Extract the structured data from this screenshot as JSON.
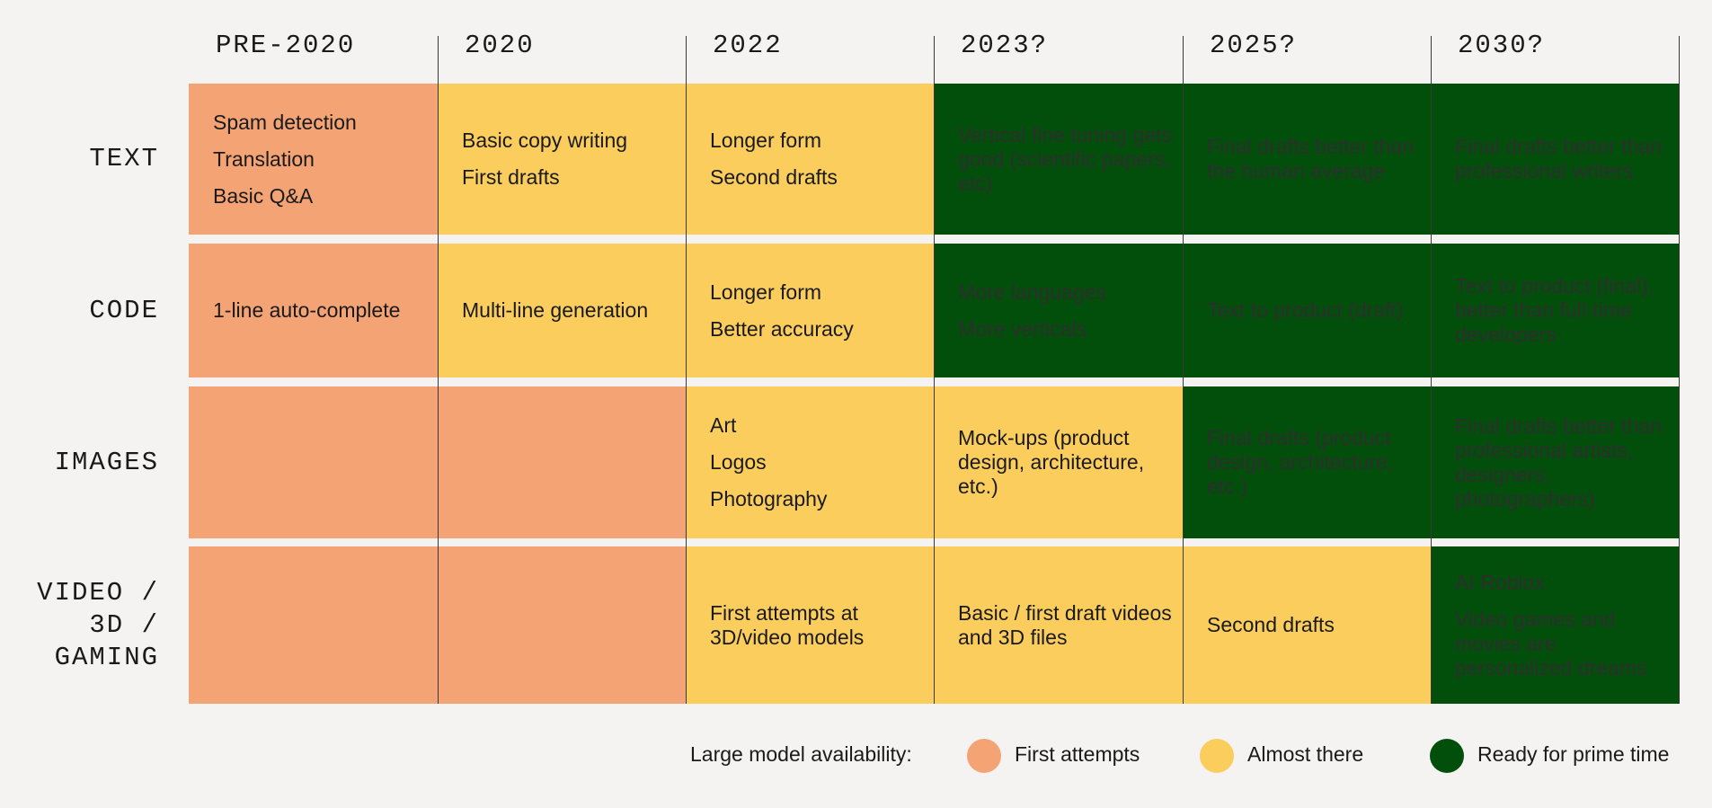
{
  "columns": [
    "PRE-2020",
    "2020",
    "2022",
    "2023?",
    "2025?",
    "2030?"
  ],
  "rows": [
    {
      "label": [
        "TEXT"
      ]
    },
    {
      "label": [
        "CODE"
      ]
    },
    {
      "label": [
        "IMAGES"
      ]
    },
    {
      "label": [
        "VIDEO /",
        "3D /",
        "GAMING"
      ]
    }
  ],
  "colors": {
    "first": "#f4a374",
    "almost": "#facd5c",
    "ready": "#024f0b",
    "background": "#f4f3f1"
  },
  "cells": [
    [
      {
        "level": "first",
        "items": [
          "Spam detection",
          "Translation",
          "Basic Q&A"
        ]
      },
      {
        "level": "almost",
        "items": [
          "Basic copy writing",
          "First drafts"
        ]
      },
      {
        "level": "almost",
        "items": [
          "Longer form",
          "Second drafts"
        ]
      },
      {
        "level": "ready",
        "items": [
          "Vertical fine tuning gets good (scientific papers, etc)"
        ]
      },
      {
        "level": "ready",
        "items": [
          "Final drafts better than the human average"
        ]
      },
      {
        "level": "ready",
        "items": [
          "Final drafts better than professional writers"
        ]
      }
    ],
    [
      {
        "level": "first",
        "items": [
          "1-line auto-complete"
        ]
      },
      {
        "level": "almost",
        "items": [
          "Multi-line generation"
        ]
      },
      {
        "level": "almost",
        "items": [
          "Longer form",
          "Better accuracy"
        ]
      },
      {
        "level": "ready",
        "items": [
          "More languages",
          "More verticals"
        ]
      },
      {
        "level": "ready",
        "items": [
          "Text to product (draft)"
        ]
      },
      {
        "level": "ready",
        "items": [
          "Text to product (final), better than full-time developers"
        ]
      }
    ],
    [
      {
        "level": "first",
        "items": []
      },
      {
        "level": "first",
        "items": []
      },
      {
        "level": "almost",
        "items": [
          "Art",
          "Logos",
          "Photography"
        ]
      },
      {
        "level": "almost",
        "items": [
          "Mock-ups (product design, architecture, etc.)"
        ]
      },
      {
        "level": "ready",
        "items": [
          "Final drafts (product design, architecture, etc.)"
        ]
      },
      {
        "level": "ready",
        "items": [
          "Final drafts better than professional artists, designers, photographers)"
        ]
      }
    ],
    [
      {
        "level": "first",
        "items": []
      },
      {
        "level": "first",
        "items": []
      },
      {
        "level": "almost",
        "items": [
          "First attempts at 3D/video models"
        ]
      },
      {
        "level": "almost",
        "items": [
          "Basic / first draft videos and 3D files"
        ]
      },
      {
        "level": "almost",
        "items": [
          "Second drafts"
        ]
      },
      {
        "level": "ready",
        "items": [
          "AI Roblox",
          "Video games and movies are personalized dreams"
        ]
      }
    ]
  ],
  "legend": {
    "title": "Large model availability:",
    "items": [
      {
        "level": "first",
        "label": "First attempts"
      },
      {
        "level": "almost",
        "label": "Almost there"
      },
      {
        "level": "ready",
        "label": "Ready for prime time"
      }
    ]
  }
}
